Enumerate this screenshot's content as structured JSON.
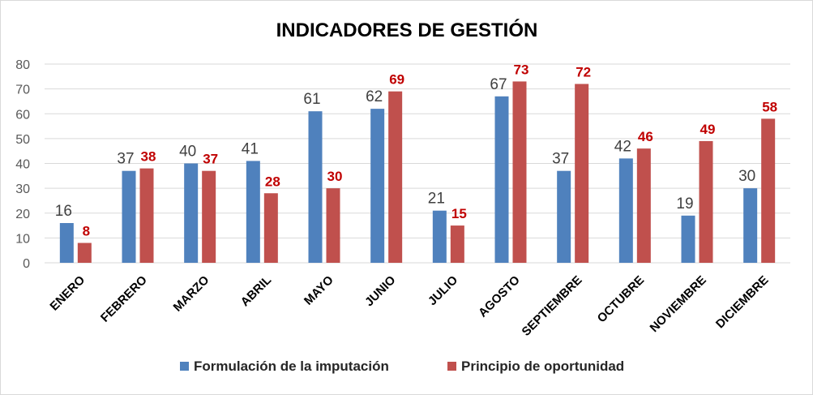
{
  "chart_data": {
    "type": "bar",
    "title": "INDICADORES DE GESTIÓN",
    "categories": [
      "ENERO",
      "FEBRERO",
      "MARZO",
      "ABRIL",
      "MAYO",
      "JUNIO",
      "JULIO",
      "AGOSTO",
      "SEPTIEMBRE",
      "OCTUBRE",
      "NOVIEMBRE",
      "DICIEMBRE"
    ],
    "series": [
      {
        "name": "Formulación de la imputación",
        "values": [
          16,
          37,
          40,
          41,
          61,
          62,
          21,
          67,
          37,
          42,
          19,
          30
        ],
        "color": "#4f81bd",
        "label_color": "#404040"
      },
      {
        "name": "Principio de oportunidad",
        "values": [
          8,
          38,
          37,
          28,
          30,
          69,
          15,
          73,
          72,
          46,
          49,
          58
        ],
        "color": "#c0504d",
        "label_color": "#c00000"
      }
    ],
    "ylim": [
      0,
      80
    ],
    "yticks": [
      0,
      10,
      20,
      30,
      40,
      50,
      60,
      70,
      80
    ],
    "xlabel": "",
    "ylabel": "",
    "grid": true,
    "legend": "bottom",
    "data_labels": true
  }
}
